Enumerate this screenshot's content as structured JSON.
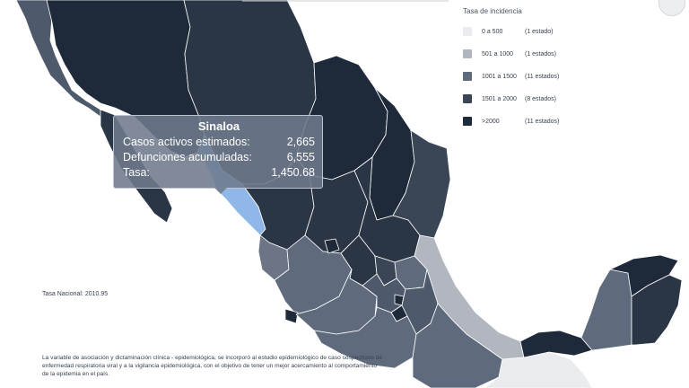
{
  "legend": {
    "title": "Tasa de incidencia",
    "items": [
      {
        "range": "0 a 500",
        "count": "(1 estado)",
        "color": "#e9ebee"
      },
      {
        "range": "501 a 1000",
        "count": "(1 estados)",
        "color": "#b2b7bf"
      },
      {
        "range": "1001 a 1500",
        "count": "(11 estados)",
        "color": "#5f6b7c"
      },
      {
        "range": "1501 a 2000",
        "count": "(8 estados)",
        "color": "#3a4656"
      },
      {
        "range": ">2000",
        "count": "(11 estados)",
        "color": "#1e2a3a"
      }
    ]
  },
  "tooltip": {
    "state": "Sinaloa",
    "rows": [
      {
        "label": "Casos activos estimados:",
        "value": "2,665"
      },
      {
        "label": "Defunciones acumuladas:",
        "value": "6,555"
      },
      {
        "label": "Tasa:",
        "value": "1,450.68"
      }
    ],
    "highlight_color": "#8fb8e8"
  },
  "national_rate": "Tasa Nacional: 2010.95",
  "footnote": "La variable de asociación y dictaminación clínica - epidemiológica, se incorporó al estudio epidemiológico de caso sospechoso de enfermedad respiratoria viral y a la vigilancia epidemiológica, con el objetivo de tener un mejor acercamiento al comportamiento de la epidemia en el país."
}
